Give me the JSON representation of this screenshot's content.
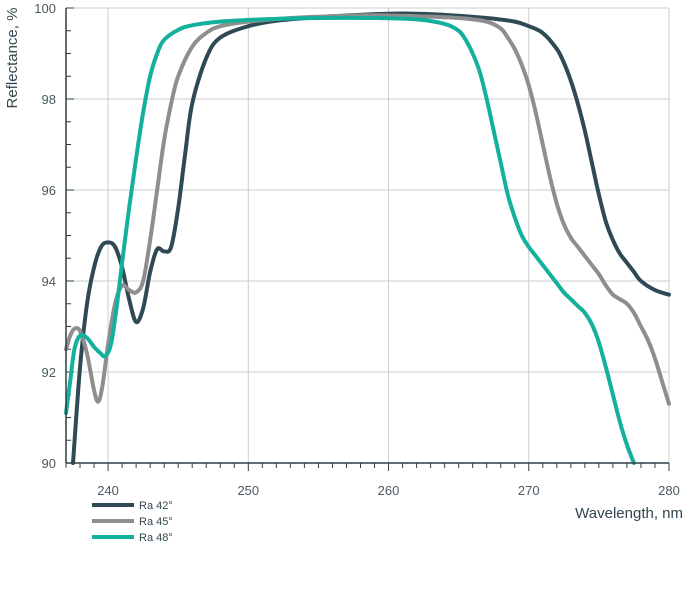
{
  "chart_data": {
    "type": "line",
    "xlabel": "Wavelength, nm",
    "ylabel": "Reflectance, %",
    "xlim": [
      237,
      280
    ],
    "ylim": [
      90,
      100
    ],
    "x_ticks": [
      240,
      250,
      260,
      270,
      280
    ],
    "y_ticks": [
      90,
      92,
      94,
      96,
      98,
      100
    ],
    "grid": true,
    "legend_position": "bottom-left",
    "series": [
      {
        "name": "Ra 42°",
        "color": "#2f4a55",
        "points": [
          [
            237.5,
            90.0
          ],
          [
            238.0,
            92.1
          ],
          [
            238.5,
            93.5
          ],
          [
            239.0,
            94.3
          ],
          [
            239.5,
            94.75
          ],
          [
            240.0,
            94.85
          ],
          [
            240.5,
            94.75
          ],
          [
            241.0,
            94.3
          ],
          [
            241.5,
            93.6
          ],
          [
            242.0,
            93.1
          ],
          [
            242.5,
            93.4
          ],
          [
            243.0,
            94.2
          ],
          [
            243.5,
            94.7
          ],
          [
            244.0,
            94.65
          ],
          [
            244.5,
            94.75
          ],
          [
            245.0,
            95.6
          ],
          [
            245.5,
            96.8
          ],
          [
            246.0,
            97.9
          ],
          [
            247.0,
            98.9
          ],
          [
            248.0,
            99.35
          ],
          [
            250.0,
            99.6
          ],
          [
            252.0,
            99.72
          ],
          [
            255.0,
            99.8
          ],
          [
            258.0,
            99.85
          ],
          [
            261.0,
            99.88
          ],
          [
            264.0,
            99.85
          ],
          [
            267.0,
            99.78
          ],
          [
            269.0,
            99.7
          ],
          [
            270.0,
            99.6
          ],
          [
            271.0,
            99.45
          ],
          [
            272.0,
            99.1
          ],
          [
            272.5,
            98.8
          ],
          [
            273.0,
            98.4
          ],
          [
            273.5,
            97.9
          ],
          [
            274.0,
            97.3
          ],
          [
            274.5,
            96.6
          ],
          [
            275.0,
            95.9
          ],
          [
            275.5,
            95.3
          ],
          [
            276.0,
            94.9
          ],
          [
            276.5,
            94.6
          ],
          [
            277.0,
            94.4
          ],
          [
            277.5,
            94.2
          ],
          [
            278.0,
            94.0
          ],
          [
            279.0,
            93.8
          ],
          [
            280.0,
            93.7
          ]
        ]
      },
      {
        "name": "Ra 45°",
        "color": "#8e8e8e",
        "points": [
          [
            237.0,
            92.5
          ],
          [
            237.3,
            92.8
          ],
          [
            237.6,
            92.95
          ],
          [
            238.0,
            92.9
          ],
          [
            238.5,
            92.4
          ],
          [
            239.0,
            91.6
          ],
          [
            239.3,
            91.35
          ],
          [
            239.6,
            91.7
          ],
          [
            240.0,
            92.6
          ],
          [
            240.5,
            93.5
          ],
          [
            241.0,
            93.9
          ],
          [
            241.5,
            93.8
          ],
          [
            242.0,
            93.75
          ],
          [
            242.5,
            94.0
          ],
          [
            243.0,
            94.9
          ],
          [
            243.5,
            96.0
          ],
          [
            244.0,
            97.1
          ],
          [
            244.5,
            97.9
          ],
          [
            245.0,
            98.5
          ],
          [
            246.0,
            99.15
          ],
          [
            247.0,
            99.45
          ],
          [
            248.0,
            99.6
          ],
          [
            250.0,
            99.7
          ],
          [
            253.0,
            99.78
          ],
          [
            256.0,
            99.82
          ],
          [
            259.0,
            99.84
          ],
          [
            262.0,
            99.82
          ],
          [
            265.0,
            99.78
          ],
          [
            267.0,
            99.7
          ],
          [
            268.0,
            99.55
          ],
          [
            268.5,
            99.35
          ],
          [
            269.0,
            99.1
          ],
          [
            269.5,
            98.75
          ],
          [
            270.0,
            98.3
          ],
          [
            270.5,
            97.7
          ],
          [
            271.0,
            97.0
          ],
          [
            271.5,
            96.3
          ],
          [
            272.0,
            95.7
          ],
          [
            272.5,
            95.25
          ],
          [
            273.0,
            94.95
          ],
          [
            273.5,
            94.75
          ],
          [
            274.0,
            94.55
          ],
          [
            274.5,
            94.35
          ],
          [
            275.0,
            94.15
          ],
          [
            275.5,
            93.9
          ],
          [
            276.0,
            93.7
          ],
          [
            276.5,
            93.6
          ],
          [
            277.0,
            93.5
          ],
          [
            277.5,
            93.3
          ],
          [
            278.0,
            93.0
          ],
          [
            278.5,
            92.7
          ],
          [
            279.0,
            92.3
          ],
          [
            279.5,
            91.8
          ],
          [
            280.0,
            91.3
          ]
        ]
      },
      {
        "name": "Ra 48°",
        "color": "#13b09c",
        "points": [
          [
            237.0,
            91.1
          ],
          [
            237.3,
            91.8
          ],
          [
            237.6,
            92.5
          ],
          [
            238.0,
            92.8
          ],
          [
            238.5,
            92.75
          ],
          [
            239.0,
            92.55
          ],
          [
            239.5,
            92.4
          ],
          [
            239.8,
            92.35
          ],
          [
            240.2,
            92.6
          ],
          [
            240.6,
            93.4
          ],
          [
            241.0,
            94.4
          ],
          [
            241.5,
            95.6
          ],
          [
            242.0,
            96.7
          ],
          [
            242.5,
            97.7
          ],
          [
            243.0,
            98.5
          ],
          [
            243.5,
            99.0
          ],
          [
            244.0,
            99.3
          ],
          [
            245.0,
            99.52
          ],
          [
            246.0,
            99.62
          ],
          [
            248.0,
            99.7
          ],
          [
            251.0,
            99.75
          ],
          [
            255.0,
            99.78
          ],
          [
            259.0,
            99.78
          ],
          [
            262.0,
            99.75
          ],
          [
            264.0,
            99.65
          ],
          [
            265.0,
            99.5
          ],
          [
            265.5,
            99.3
          ],
          [
            266.0,
            99.0
          ],
          [
            266.5,
            98.6
          ],
          [
            267.0,
            98.0
          ],
          [
            267.5,
            97.3
          ],
          [
            268.0,
            96.6
          ],
          [
            268.5,
            95.9
          ],
          [
            269.0,
            95.4
          ],
          [
            269.5,
            95.0
          ],
          [
            270.0,
            94.75
          ],
          [
            270.5,
            94.55
          ],
          [
            271.0,
            94.35
          ],
          [
            271.5,
            94.15
          ],
          [
            272.0,
            93.95
          ],
          [
            272.5,
            93.75
          ],
          [
            273.0,
            93.6
          ],
          [
            273.5,
            93.45
          ],
          [
            274.0,
            93.3
          ],
          [
            274.5,
            93.05
          ],
          [
            275.0,
            92.65
          ],
          [
            275.5,
            92.1
          ],
          [
            276.0,
            91.5
          ],
          [
            276.5,
            90.9
          ],
          [
            277.0,
            90.4
          ],
          [
            277.5,
            90.0
          ]
        ]
      }
    ]
  }
}
